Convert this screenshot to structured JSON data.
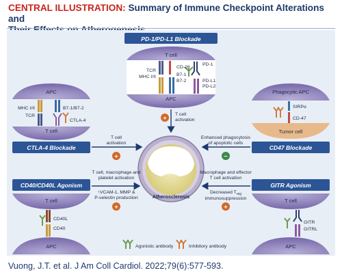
{
  "header": {
    "title_prefix": "CENTRAL ILLUSTRATION:",
    "title_line1": "Summary of Immune Checkpoint Alterations and",
    "title_line2": "Their Effects on Atherogenesis"
  },
  "center": {
    "label": "Atherosclerosis"
  },
  "pd1": {
    "banner": "PD-1/PD-L1 Blockade",
    "tcell": "T cell",
    "apc": "APC",
    "tcr": "TCR",
    "mhc": "MHC I/II",
    "cd28": "CD-28",
    "b71": "B7-1",
    "b72": "B7-2",
    "pd1": "PD-1",
    "pdl1": "PD-L1",
    "pdl2": "PD-L2",
    "effect_line1": "T cell",
    "effect_line2": "activation",
    "sign": "+"
  },
  "ctla4": {
    "banner": "CTLA-4 Blockade",
    "apc": "APC",
    "tcell": "T cell",
    "mhc": "MHC I/II",
    "tcr": "TCR",
    "b7": "B7-1/B7-2",
    "ctla4": "CTLA-4",
    "effect_line1": "T cell",
    "effect_line2": "activation",
    "sign": "+"
  },
  "cd47": {
    "banner": "CD47 Blockade",
    "phago": "Phagocytic APC",
    "sirp": "SIRPα",
    "cd47": "CD-47",
    "tumor": "Tumor cell",
    "effect_line1": "Enhanced phagocytosis",
    "effect_line2": "of apoptotic cells",
    "sign": "−"
  },
  "cd40": {
    "banner": "CD40/CD40L Agonism",
    "tcell": "T cell",
    "apc": "APC",
    "cd40l": "CD40L",
    "cd40": "CD40",
    "effect_line1": "T cell, macrophage and",
    "effect_line2": "platelet activation",
    "effect_line3": "↑VCAM-1, MMP &",
    "effect_line4": "P-selectin production",
    "sign": "+"
  },
  "gitr": {
    "banner": "GITR Agonism",
    "tcell": "T cell",
    "apc": "APC",
    "gitr": "GITR",
    "gitrl": "GITRL",
    "effect_line1": "Macrophage and effector",
    "effect_line2": "T cell activation",
    "effect_line3": "Decreased T",
    "effect_sub": "reg",
    "effect_line4": "immunosuppression",
    "sign": "+"
  },
  "legend": {
    "agonistic": "Agonistic antibody",
    "inhibitory": "Inhibitory antibody"
  },
  "footer": {
    "citation": "Vuong, J.T. et al. J Am Coll Cardiol. 2022;79(6):577-593."
  },
  "colors": {
    "title_red": "#c8241c",
    "navy": "#1d3a6b",
    "cell_purple": "#8c7fb8",
    "banner_blue": "#2c5596",
    "tumor": "#e8b98a",
    "plus_orange": "#d2692a",
    "minus_green": "#3f8a4a",
    "agonist_green": "#6f9a4e",
    "inhibit_orange": "#cf7a3e"
  }
}
